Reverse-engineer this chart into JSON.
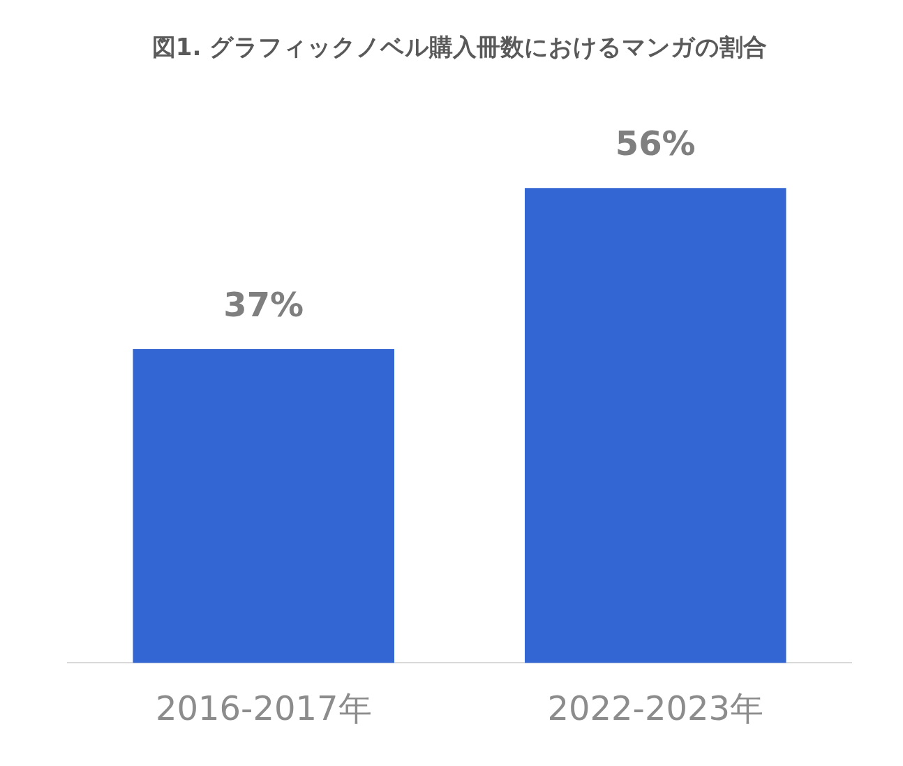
{
  "chart_data": {
    "type": "bar",
    "title": "図1. グラフィックノベル購入冊数におけるマンガの割合",
    "categories": [
      "2016-2017年",
      "2022-2023年"
    ],
    "values": [
      37,
      56
    ],
    "value_labels": [
      "37%",
      "56%"
    ],
    "color": "#3366d3",
    "grid": false,
    "legend": false
  }
}
